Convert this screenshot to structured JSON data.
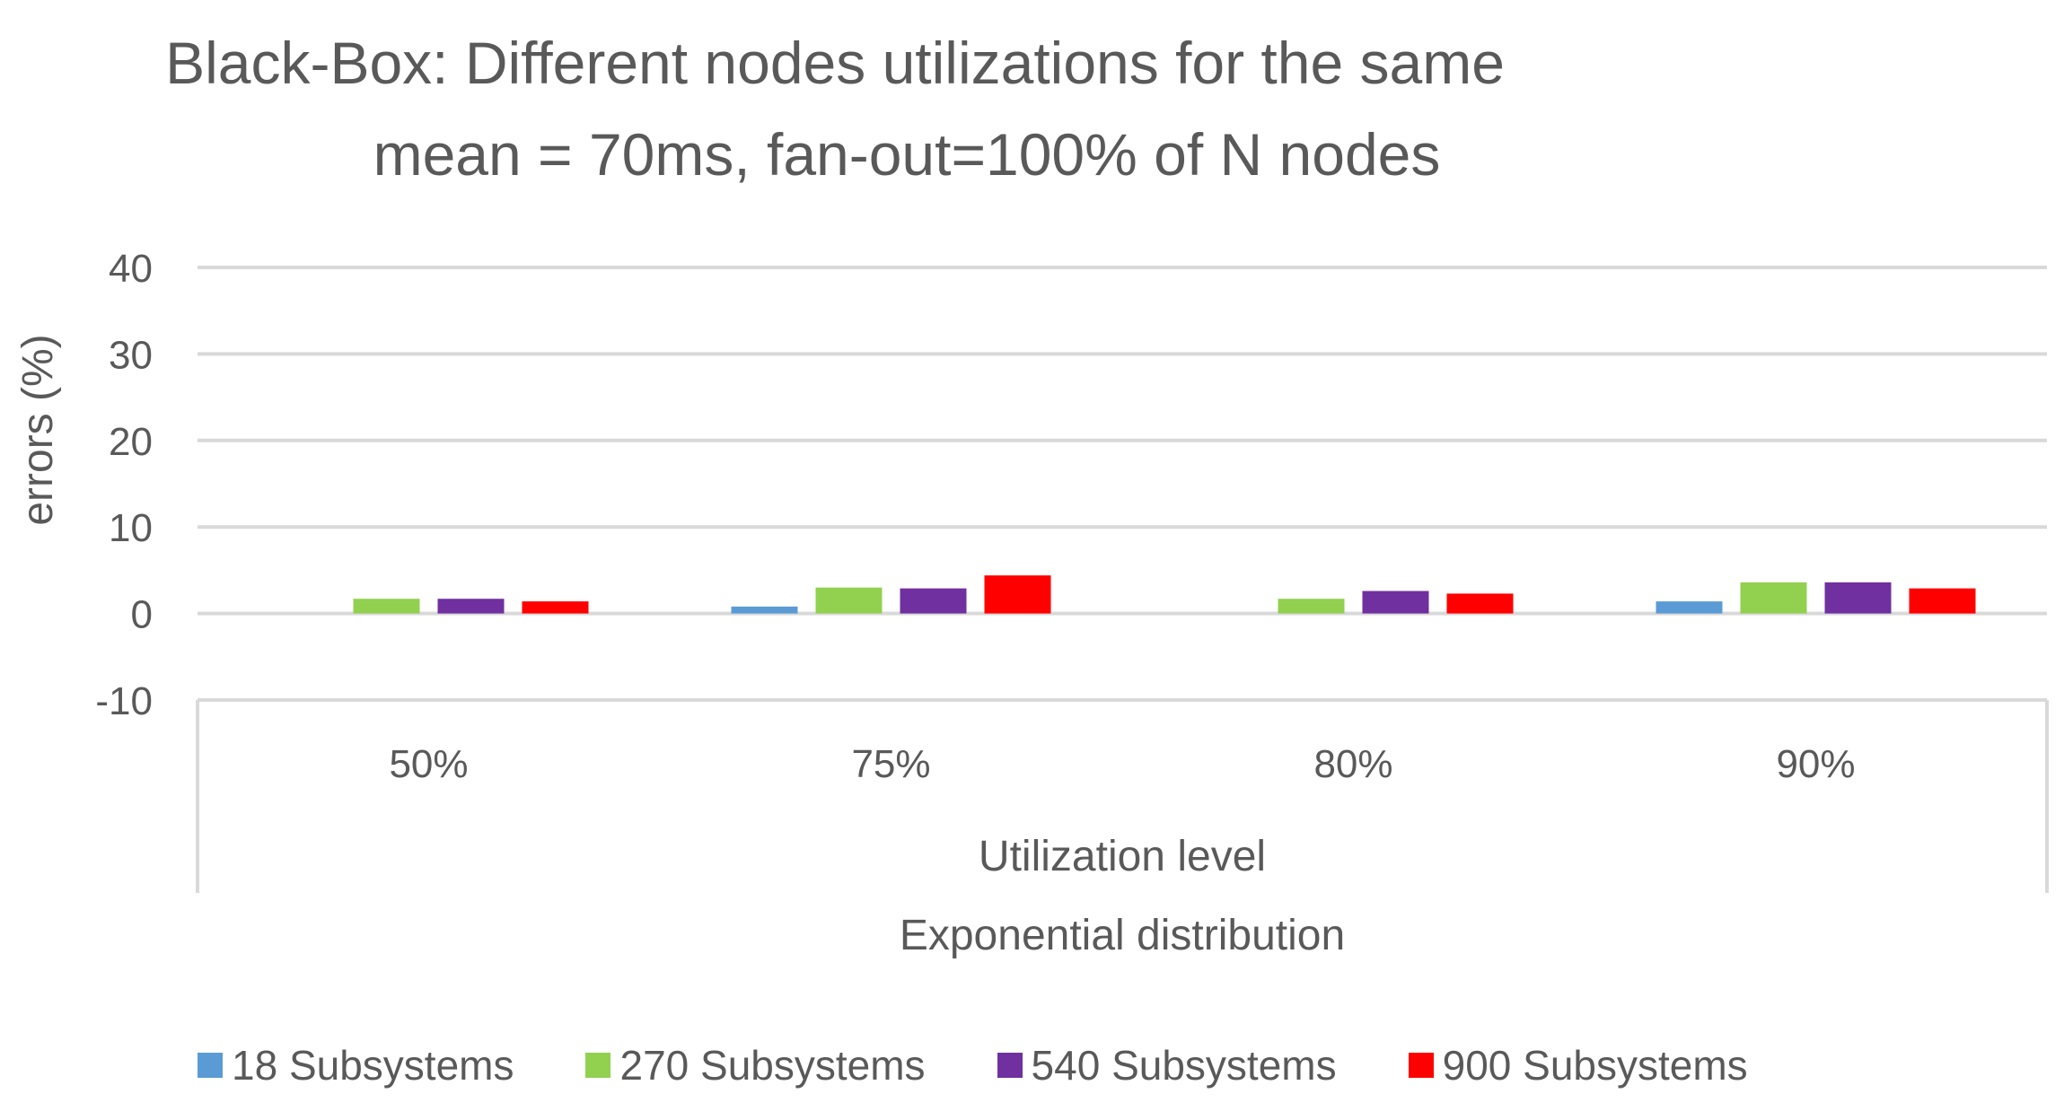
{
  "chart_data": {
    "type": "bar",
    "title_line1": "Black-Box: Different nodes utilizations for the same",
    "title_line2": "mean = 70ms, fan-out=100% of N nodes",
    "ylabel": "errors (%)",
    "xlabel": "Utilization level",
    "xlabel2": "Exponential distribution",
    "ylim": [
      -10,
      40
    ],
    "yticks": [
      -10,
      0,
      10,
      20,
      30,
      40
    ],
    "categories": [
      "50%",
      "75%",
      "80%",
      "90%"
    ],
    "series": [
      {
        "name": "18 Subsystems",
        "color": "#5B9BD5",
        "values": [
          0,
          0.8,
          0,
          1.4
        ]
      },
      {
        "name": "270 Subsystems",
        "color": "#92D050",
        "values": [
          1.7,
          3.0,
          1.7,
          3.6
        ]
      },
      {
        "name": "540 Subsystems",
        "color": "#7030A0",
        "values": [
          1.7,
          2.9,
          2.6,
          3.6
        ]
      },
      {
        "name": "900 Subsystems",
        "color": "#FF0000",
        "values": [
          1.4,
          4.4,
          2.3,
          2.9
        ]
      }
    ],
    "legend_position": "bottom"
  }
}
